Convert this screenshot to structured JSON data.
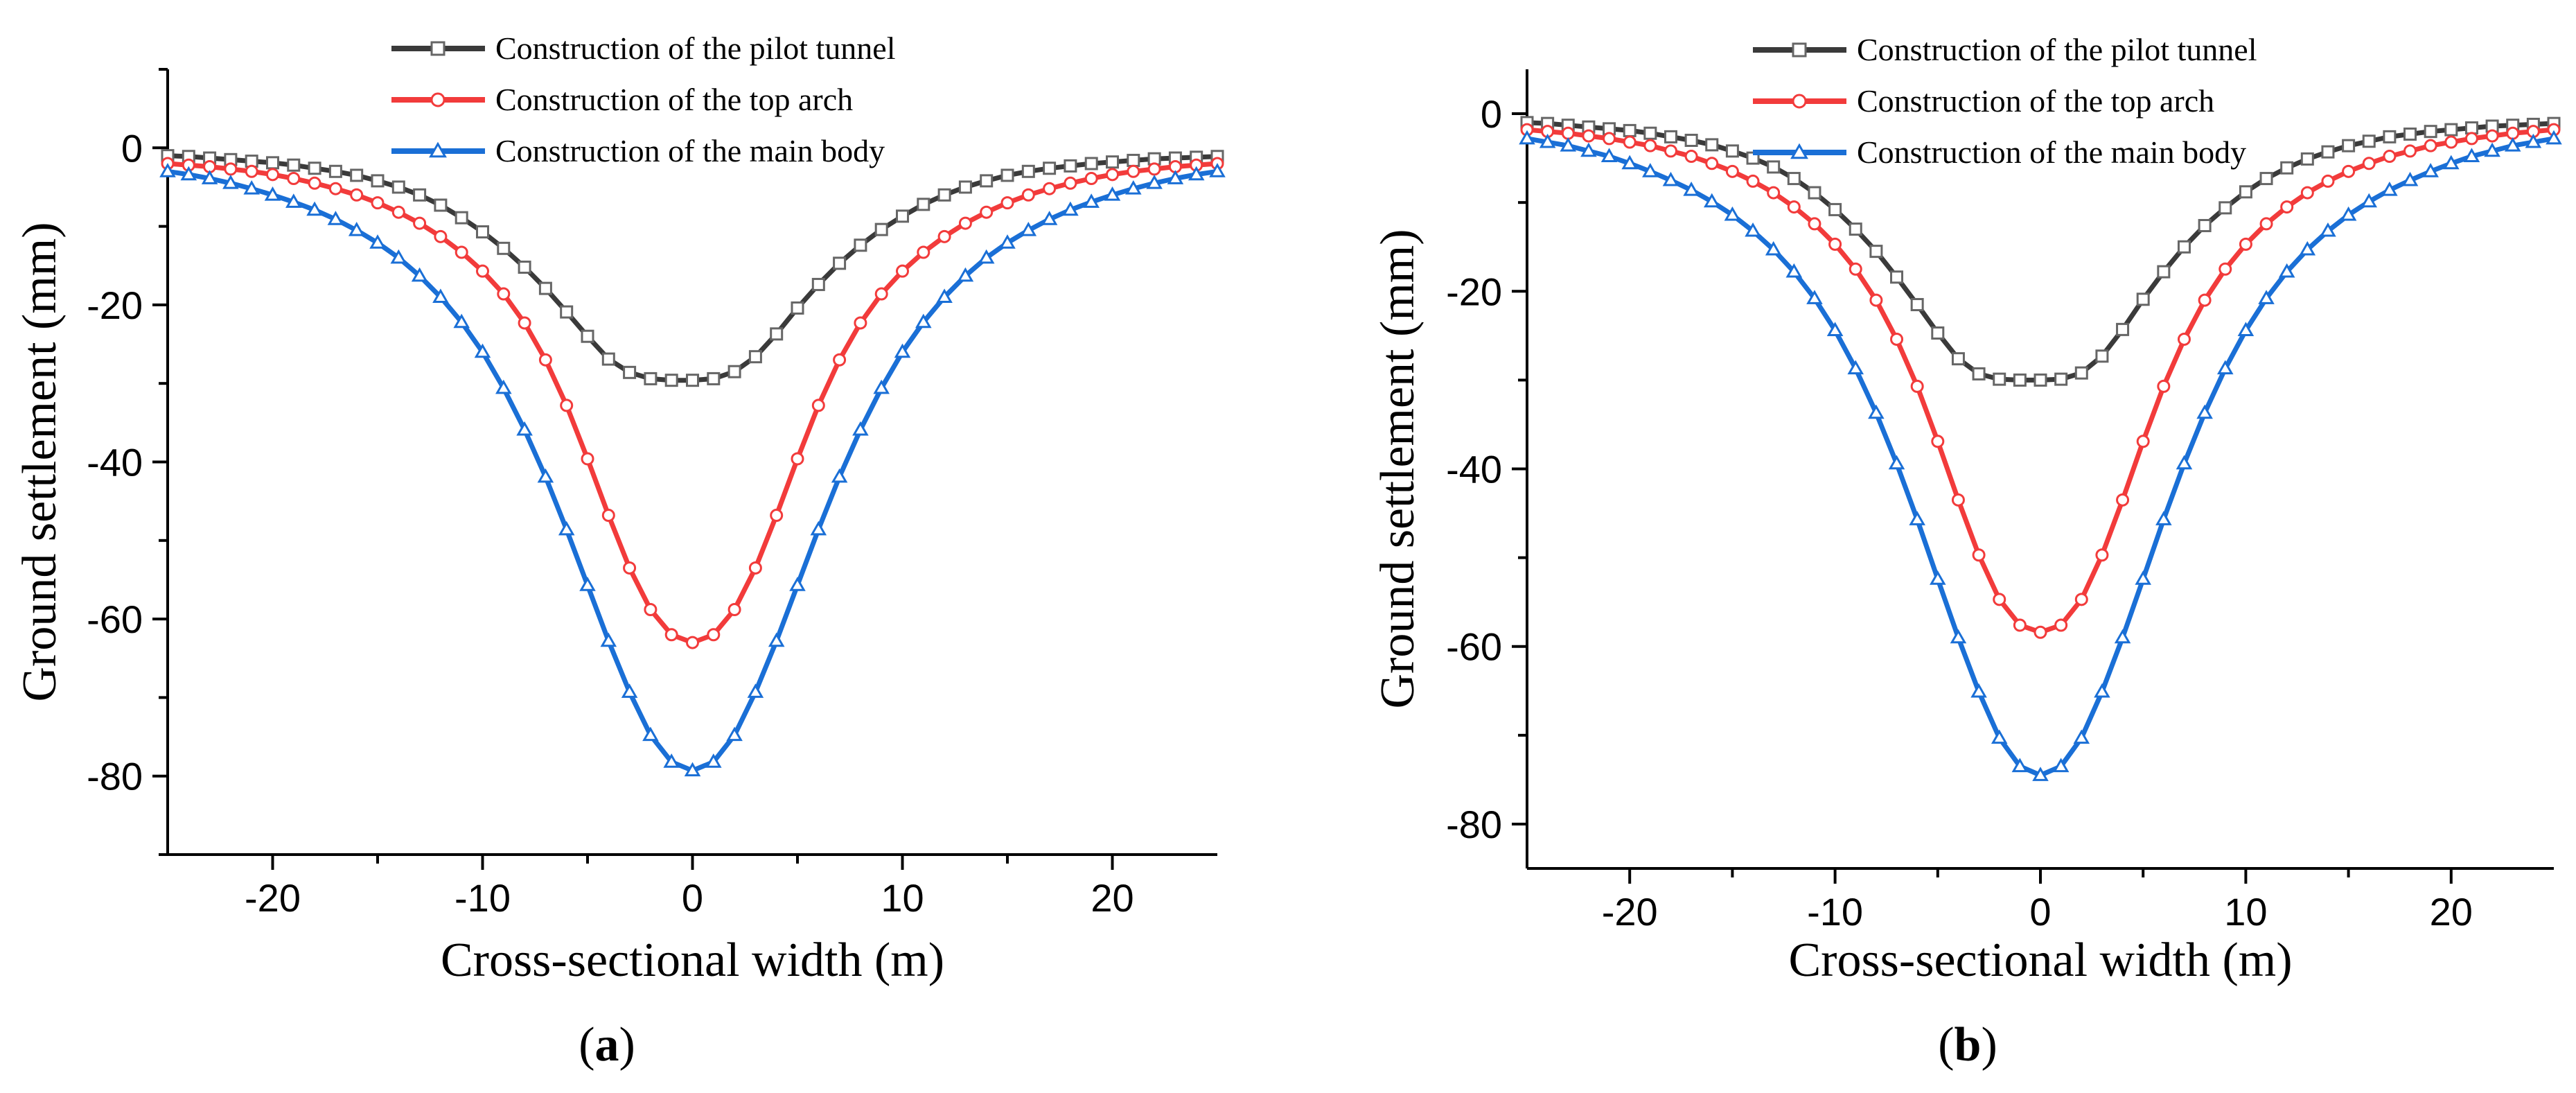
{
  "panel_labels": [
    {
      "open": "(",
      "letter": "a",
      "close": ")"
    },
    {
      "open": "(",
      "letter": "b",
      "close": ")"
    }
  ],
  "colors": {
    "pilot": "#3a3a3a",
    "arch": "#f23b3b",
    "body": "#1a6fd6"
  },
  "chart_data": [
    {
      "type": "line",
      "xlabel": "Cross-sectional width (m)",
      "ylabel": "Ground settlement (mm)",
      "xlim": [
        -25,
        25
      ],
      "ylim": [
        -90,
        10
      ],
      "xticks": [
        -20,
        -10,
        0,
        10,
        20
      ],
      "yticks": [
        0,
        -20,
        -40,
        -60,
        -80
      ],
      "legend_position": "top-center",
      "grid": false,
      "series": [
        {
          "name": "Construction of the pilot tunnel",
          "marker": "square",
          "color": "#3a3a3a",
          "x": [
            -25,
            -24,
            -23,
            -22,
            -21,
            -20,
            -19,
            -18,
            -17,
            -16,
            -15,
            -14,
            -13,
            -12,
            -11,
            -10,
            -9,
            -8,
            -7,
            -6,
            -5,
            -4,
            -3,
            -2,
            -1,
            0,
            1,
            2,
            3,
            4,
            5,
            6,
            7,
            8,
            9,
            10,
            11,
            12,
            13,
            14,
            15,
            16,
            17,
            18,
            19,
            20,
            21,
            22,
            23,
            24,
            25
          ],
          "y": [
            -1.0,
            -1.1,
            -1.3,
            -1.5,
            -1.7,
            -1.9,
            -2.2,
            -2.6,
            -3.0,
            -3.5,
            -4.2,
            -5.0,
            -6.0,
            -7.3,
            -8.9,
            -10.7,
            -12.8,
            -15.2,
            -17.9,
            -20.9,
            -24.0,
            -26.9,
            -28.6,
            -29.4,
            -29.6,
            -29.6,
            -29.4,
            -28.5,
            -26.6,
            -23.7,
            -20.4,
            -17.4,
            -14.7,
            -12.4,
            -10.4,
            -8.7,
            -7.2,
            -6.0,
            -5.0,
            -4.2,
            -3.5,
            -3.0,
            -2.6,
            -2.3,
            -2.0,
            -1.8,
            -1.6,
            -1.4,
            -1.3,
            -1.2,
            -1.1
          ]
        },
        {
          "name": "Construction of the top arch",
          "marker": "circle",
          "color": "#f23b3b",
          "x": [
            -25,
            -24,
            -23,
            -22,
            -21,
            -20,
            -19,
            -18,
            -17,
            -16,
            -15,
            -14,
            -13,
            -12,
            -11,
            -10,
            -9,
            -8,
            -7,
            -6,
            -5,
            -4,
            -3,
            -2,
            -1,
            0,
            1,
            2,
            3,
            4,
            5,
            6,
            7,
            8,
            9,
            10,
            11,
            12,
            13,
            14,
            15,
            16,
            17,
            18,
            19,
            20,
            21,
            22,
            23,
            24,
            25
          ],
          "y": [
            -2.0,
            -2.2,
            -2.4,
            -2.7,
            -3.0,
            -3.4,
            -3.9,
            -4.5,
            -5.2,
            -6.0,
            -7.0,
            -8.2,
            -9.6,
            -11.3,
            -13.3,
            -15.7,
            -18.6,
            -22.3,
            -27.0,
            -32.8,
            -39.6,
            -46.8,
            -53.5,
            -58.8,
            -62.0,
            -63.0,
            -62.0,
            -58.8,
            -53.5,
            -46.8,
            -39.6,
            -32.8,
            -27.0,
            -22.3,
            -18.6,
            -15.7,
            -13.3,
            -11.3,
            -9.6,
            -8.2,
            -7.0,
            -6.0,
            -5.2,
            -4.5,
            -3.9,
            -3.4,
            -3.0,
            -2.7,
            -2.4,
            -2.2,
            -2.0
          ]
        },
        {
          "name": "Construction of the main body",
          "marker": "triangle",
          "color": "#1a6fd6",
          "x": [
            -25,
            -24,
            -23,
            -22,
            -21,
            -20,
            -19,
            -18,
            -17,
            -16,
            -15,
            -14,
            -13,
            -12,
            -11,
            -10,
            -9,
            -8,
            -7,
            -6,
            -5,
            -4,
            -3,
            -2,
            -1,
            0,
            1,
            2,
            3,
            4,
            5,
            6,
            7,
            8,
            9,
            10,
            11,
            12,
            13,
            14,
            15,
            16,
            17,
            18,
            19,
            20,
            21,
            22,
            23,
            24,
            25
          ],
          "y": [
            -3.0,
            -3.4,
            -3.9,
            -4.5,
            -5.2,
            -6.0,
            -6.9,
            -7.9,
            -9.1,
            -10.5,
            -12.1,
            -14.0,
            -16.3,
            -19.0,
            -22.2,
            -26.0,
            -30.6,
            -35.9,
            -41.9,
            -48.6,
            -55.7,
            -62.8,
            -69.3,
            -74.8,
            -78.2,
            -79.3,
            -78.2,
            -74.8,
            -69.3,
            -62.8,
            -55.7,
            -48.6,
            -41.9,
            -35.9,
            -30.6,
            -26.0,
            -22.2,
            -19.0,
            -16.3,
            -14.0,
            -12.1,
            -10.5,
            -9.1,
            -7.9,
            -6.9,
            -6.0,
            -5.2,
            -4.5,
            -3.9,
            -3.4,
            -3.0
          ]
        }
      ]
    },
    {
      "type": "line",
      "xlabel": "Cross-sectional width (m)",
      "ylabel": "Ground settlement (mm)",
      "xlim": [
        -25,
        25
      ],
      "ylim": [
        -85,
        5
      ],
      "xticks": [
        -20,
        -10,
        0,
        10,
        20
      ],
      "yticks": [
        0,
        -20,
        -40,
        -60,
        -80
      ],
      "legend_position": "top-center",
      "grid": false,
      "series": [
        {
          "name": "Construction of the pilot tunnel",
          "marker": "square",
          "color": "#3a3a3a",
          "x": [
            -25,
            -24,
            -23,
            -22,
            -21,
            -20,
            -19,
            -18,
            -17,
            -16,
            -15,
            -14,
            -13,
            -12,
            -11,
            -10,
            -9,
            -8,
            -7,
            -6,
            -5,
            -4,
            -3,
            -2,
            -1,
            0,
            1,
            2,
            3,
            4,
            5,
            6,
            7,
            8,
            9,
            10,
            11,
            12,
            13,
            14,
            15,
            16,
            17,
            18,
            19,
            20,
            21,
            22,
            23,
            24,
            25
          ],
          "y": [
            -1.0,
            -1.1,
            -1.3,
            -1.5,
            -1.7,
            -1.9,
            -2.2,
            -2.6,
            -3.0,
            -3.5,
            -4.2,
            -5.0,
            -6.0,
            -7.3,
            -8.9,
            -10.8,
            -13.0,
            -15.5,
            -18.4,
            -21.5,
            -24.7,
            -27.6,
            -29.3,
            -29.9,
            -30.0,
            -30.0,
            -29.9,
            -29.2,
            -27.3,
            -24.3,
            -20.9,
            -17.8,
            -15.0,
            -12.6,
            -10.6,
            -8.8,
            -7.3,
            -6.1,
            -5.1,
            -4.3,
            -3.6,
            -3.1,
            -2.6,
            -2.3,
            -2.0,
            -1.8,
            -1.6,
            -1.4,
            -1.3,
            -1.2,
            -1.1
          ]
        },
        {
          "name": "Construction of the top arch",
          "marker": "circle",
          "color": "#f23b3b",
          "x": [
            -25,
            -24,
            -23,
            -22,
            -21,
            -20,
            -19,
            -18,
            -17,
            -16,
            -15,
            -14,
            -13,
            -12,
            -11,
            -10,
            -9,
            -8,
            -7,
            -6,
            -5,
            -4,
            -3,
            -2,
            -1,
            0,
            1,
            2,
            3,
            4,
            5,
            6,
            7,
            8,
            9,
            10,
            11,
            12,
            13,
            14,
            15,
            16,
            17,
            18,
            19,
            20,
            21,
            22,
            23,
            24,
            25
          ],
          "y": [
            -1.8,
            -2.0,
            -2.2,
            -2.5,
            -2.8,
            -3.2,
            -3.6,
            -4.2,
            -4.8,
            -5.6,
            -6.5,
            -7.6,
            -8.9,
            -10.5,
            -12.4,
            -14.7,
            -17.5,
            -21.0,
            -25.4,
            -30.7,
            -36.9,
            -43.5,
            -49.7,
            -54.7,
            -57.6,
            -58.4,
            -57.6,
            -54.7,
            -49.7,
            -43.5,
            -36.9,
            -30.7,
            -25.4,
            -21.0,
            -17.5,
            -14.7,
            -12.4,
            -10.5,
            -8.9,
            -7.6,
            -6.5,
            -5.6,
            -4.8,
            -4.2,
            -3.6,
            -3.2,
            -2.8,
            -2.5,
            -2.2,
            -2.0,
            -1.8
          ]
        },
        {
          "name": "Construction of the main body",
          "marker": "triangle",
          "color": "#1a6fd6",
          "x": [
            -25,
            -24,
            -23,
            -22,
            -21,
            -20,
            -19,
            -18,
            -17,
            -16,
            -15,
            -14,
            -13,
            -12,
            -11,
            -10,
            -9,
            -8,
            -7,
            -6,
            -5,
            -4,
            -3,
            -2,
            -1,
            0,
            1,
            2,
            3,
            4,
            5,
            6,
            7,
            8,
            9,
            10,
            11,
            12,
            13,
            14,
            15,
            16,
            17,
            18,
            19,
            20,
            21,
            22,
            23,
            24,
            25
          ],
          "y": [
            -2.8,
            -3.2,
            -3.6,
            -4.2,
            -4.8,
            -5.6,
            -6.5,
            -7.5,
            -8.6,
            -9.9,
            -11.4,
            -13.2,
            -15.3,
            -17.8,
            -20.8,
            -24.4,
            -28.7,
            -33.7,
            -39.4,
            -45.7,
            -52.4,
            -59.0,
            -65.1,
            -70.3,
            -73.5,
            -74.5,
            -73.5,
            -70.3,
            -65.1,
            -59.0,
            -52.4,
            -45.7,
            -39.4,
            -33.7,
            -28.7,
            -24.4,
            -20.8,
            -17.8,
            -15.3,
            -13.2,
            -11.4,
            -9.9,
            -8.6,
            -7.5,
            -6.5,
            -5.6,
            -4.8,
            -4.2,
            -3.6,
            -3.2,
            -2.8
          ]
        }
      ]
    }
  ]
}
